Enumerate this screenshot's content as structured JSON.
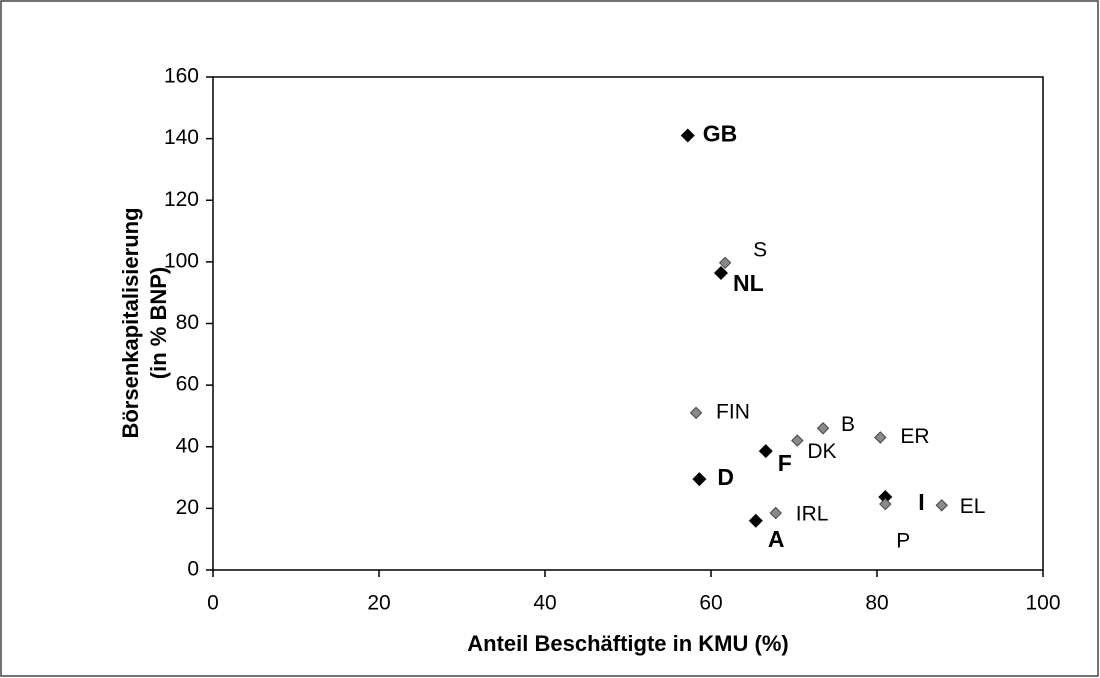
{
  "chart_data": {
    "type": "scatter",
    "x_label": "Anteil Beschäftigte in KMU (%)",
    "y_label": [
      "Börsenkapitalisierung",
      "(in % BNP)"
    ],
    "xlim": [
      0,
      100
    ],
    "xticks": [
      0,
      20,
      40,
      60,
      80,
      100
    ],
    "ylim": [
      0,
      160
    ],
    "yticks": [
      0,
      20,
      40,
      60,
      80,
      100,
      120,
      140,
      160
    ],
    "series": [
      {
        "color": "#000000",
        "bold": true,
        "labels": [
          "GB",
          "NL",
          "F",
          "D",
          "A",
          "I"
        ],
        "x": [
          57.2,
          61.2,
          66.6,
          58.6,
          65.4,
          81
        ],
        "values": [
          141,
          96.4,
          38.6,
          29.5,
          16,
          23.7
        ]
      },
      {
        "color": "#8a8a8a",
        "bold": false,
        "labels": [
          "S",
          "FIN",
          "B",
          "DK",
          "ER",
          "IRL",
          "EL",
          "P"
        ],
        "x": [
          61.7,
          58.2,
          73.5,
          70.4,
          80.4,
          67.8,
          87.8,
          81
        ],
        "values": [
          99.7,
          51,
          46,
          42,
          43,
          18.5,
          21,
          21.4
        ]
      }
    ]
  }
}
